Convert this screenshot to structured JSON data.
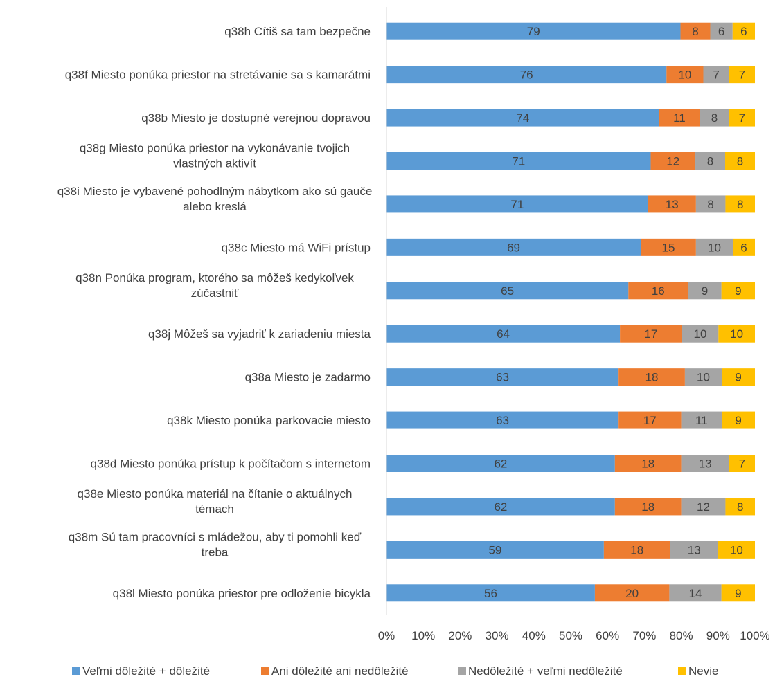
{
  "chart_data": {
    "type": "bar",
    "orientation": "horizontal",
    "stacked": "percent",
    "categories": [
      [
        "q38h Cítiš sa tam bezpečne"
      ],
      [
        "q38f Miesto ponúka priestor na stretávanie sa s kamarátmi"
      ],
      [
        "q38b Miesto je dostupné verejnou dopravou"
      ],
      [
        "q38g Miesto ponúka priestor na vykonávanie tvojich",
        "vlastných aktivít"
      ],
      [
        "q38i Miesto je vybavené pohodlným nábytkom ako sú gauče",
        "alebo kreslá"
      ],
      [
        "q38c Miesto má WiFi prístup"
      ],
      [
        "q38n Ponúka program, ktorého sa môžeš kedykoľvek",
        "zúčastniť"
      ],
      [
        "q38j Môžeš sa vyjadriť k zariadeniu miesta"
      ],
      [
        "q38a Miesto je zadarmo"
      ],
      [
        "q38k Miesto ponúka parkovacie miesto"
      ],
      [
        "q38d Miesto ponúka prístup k počítačom s internetom"
      ],
      [
        "q38e Miesto ponúka materiál na čítanie o aktuálnych",
        "témach"
      ],
      [
        "q38m Sú tam pracovníci s mládežou, aby ti pomohli keď",
        "treba"
      ],
      [
        "q38l Miesto ponúka priestor pre odloženie bicykla"
      ]
    ],
    "series": [
      {
        "name": "Veľmi dôležité + dôležité",
        "color": "#5B9BD5",
        "values": [
          79,
          76,
          74,
          71,
          71,
          69,
          65,
          64,
          63,
          63,
          62,
          62,
          59,
          56
        ]
      },
      {
        "name": "Ani dôležité ani nedôležité",
        "color": "#ED7D31",
        "values": [
          8,
          10,
          11,
          12,
          13,
          15,
          16,
          17,
          18,
          17,
          18,
          18,
          18,
          20
        ]
      },
      {
        "name": "Nedôležité + veľmi nedôležité",
        "color": "#A5A5A5",
        "values": [
          6,
          7,
          8,
          8,
          8,
          10,
          9,
          10,
          10,
          11,
          13,
          12,
          13,
          14
        ]
      },
      {
        "name": "Nevie",
        "color": "#FFC000",
        "values": [
          6,
          7,
          7,
          8,
          8,
          6,
          9,
          10,
          9,
          9,
          7,
          8,
          10,
          9
        ]
      }
    ],
    "x_ticks": [
      "0%",
      "10%",
      "20%",
      "30%",
      "40%",
      "50%",
      "60%",
      "70%",
      "80%",
      "90%",
      "100%"
    ],
    "xlim": [
      0,
      100
    ],
    "grid": false,
    "legend_position": "bottom",
    "text_color": "#404040",
    "axis_color": "#D9D9D9"
  }
}
